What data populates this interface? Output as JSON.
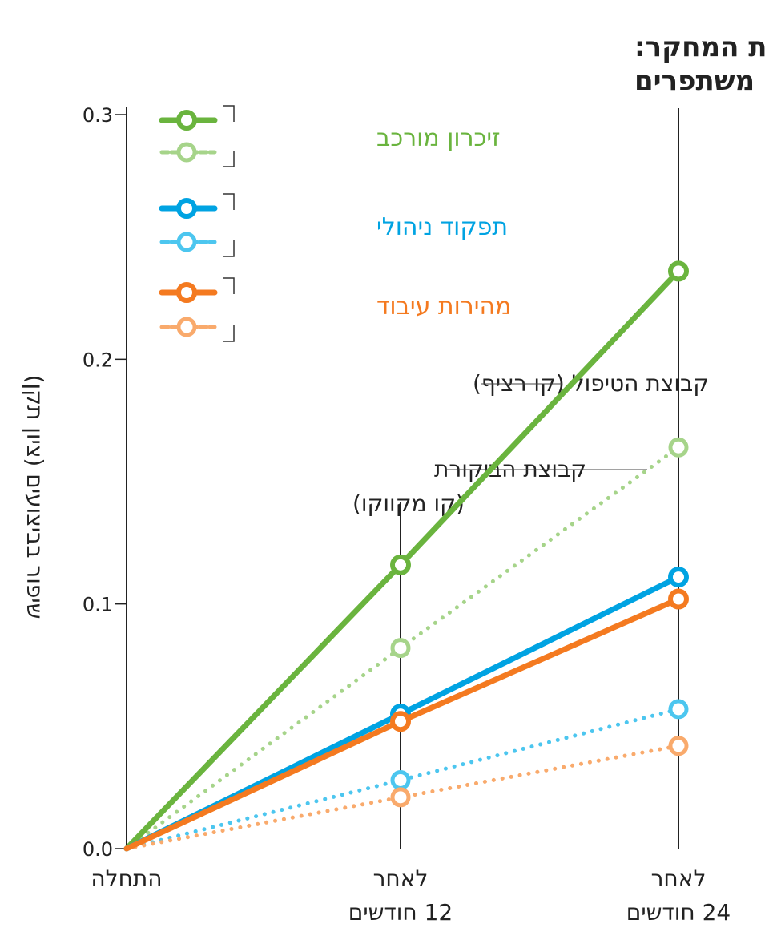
{
  "chart_data": {
    "type": "line",
    "title": [
      "תוצאות המחקר:",
      "משתפרים"
    ],
    "ylabel": "שיפור בביצועים (ציון תקן)",
    "xlabel": "",
    "ylim": [
      0,
      0.3
    ],
    "yticks": [
      "0.0",
      "0.1",
      "0.2",
      "0.3"
    ],
    "ytick_values": [
      0,
      0.1,
      0.2,
      0.3
    ],
    "categories": [
      {
        "line1": "התחלה",
        "line2": ""
      },
      {
        "line1": "לאחר",
        "line2": "12 חודשים"
      },
      {
        "line1": "לאחר",
        "line2": "24 חודשים"
      }
    ],
    "series": [
      {
        "name": "זיכרון מורכב - קבוצת הטיפול",
        "metric": "זיכרון מורכב",
        "group": "treatment",
        "style": "solid",
        "color": "#6ab43e",
        "values": [
          0,
          0.116,
          0.236
        ]
      },
      {
        "name": "זיכרון מורכב - קבוצת הביקורת",
        "metric": "זיכרון מורכב",
        "group": "control",
        "style": "dotted",
        "color": "#a6d48a",
        "values": [
          0,
          0.082,
          0.164
        ]
      },
      {
        "name": "תפקוד ניהולי - קבוצת הטיפול",
        "metric": "תפקוד ניהולי",
        "group": "treatment",
        "style": "solid",
        "color": "#00a3e2",
        "values": [
          0,
          0.055,
          0.111
        ]
      },
      {
        "name": "תפקוד ניהולי - קבוצת הביקורת",
        "metric": "תפקוד ניהולי",
        "group": "control",
        "style": "dotted",
        "color": "#4cc6ef",
        "values": [
          0,
          0.028,
          0.057
        ]
      },
      {
        "name": "מהירות עיבוד - קבוצת הטיפול",
        "metric": "מהירות עיבוד",
        "group": "treatment",
        "style": "solid",
        "color": "#f47a20",
        "values": [
          0,
          0.052,
          0.102
        ]
      },
      {
        "name": "מהירות עיבוד - קבוצת הביקורת",
        "metric": "מהירות עיבוד",
        "group": "control",
        "style": "dotted",
        "color": "#f9aa6c",
        "values": [
          0,
          0.021,
          0.042
        ]
      }
    ],
    "legend": {
      "placement": "top-left",
      "entries": [
        {
          "label": "זיכרון מורכב",
          "color": "#6ab43e",
          "light": "#a6d48a"
        },
        {
          "label": "תפקוד ניהולי",
          "color": "#00a3e2",
          "light": "#4cc6ef"
        },
        {
          "label": "מהירות עיבוד",
          "color": "#f47a20",
          "light": "#f9aa6c"
        }
      ]
    },
    "annotations": {
      "treatment": "קבוצת הטיפול (קו רציף)",
      "control_line1": "קבוצת הביקורת",
      "control_line2": "(קו מקווקו)"
    },
    "grid": false
  }
}
